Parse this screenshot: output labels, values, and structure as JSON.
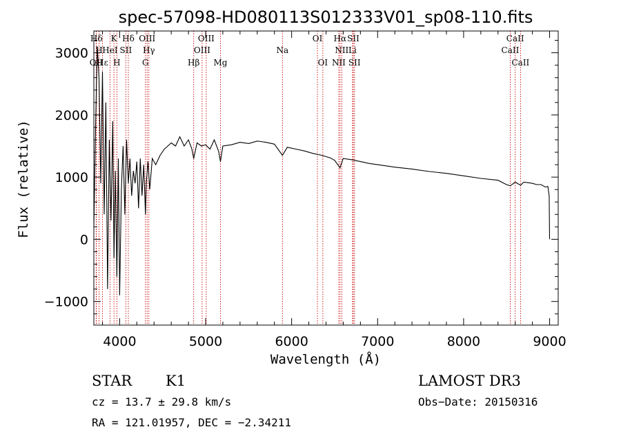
{
  "chart_data": {
    "type": "line",
    "title": "spec-57098-HD080113S012333V01_sp08-110.fits",
    "xlabel": "Wavelength (Å)",
    "ylabel": "Flux (relative)",
    "xlim": [
      3700,
      9100
    ],
    "ylim": [
      -1380,
      3350
    ],
    "x_ticks": [
      4000,
      5000,
      6000,
      7000,
      8000,
      9000
    ],
    "x_tick_labels": [
      "4000",
      "5000",
      "6000",
      "7000",
      "8000",
      "9000"
    ],
    "y_ticks": [
      -1000,
      0,
      1000,
      2000,
      3000
    ],
    "y_tick_labels": [
      "−1000",
      "0",
      "1000",
      "2000",
      "3000"
    ],
    "grid": false,
    "line_color": "#000000",
    "marker_color": "#cc0000",
    "series": [
      {
        "name": "flux",
        "x": [
          3700,
          3720,
          3740,
          3760,
          3780,
          3800,
          3820,
          3840,
          3860,
          3880,
          3900,
          3920,
          3934,
          3950,
          3968,
          3985,
          4000,
          4020,
          4040,
          4060,
          4080,
          4101,
          4120,
          4140,
          4160,
          4180,
          4200,
          4220,
          4240,
          4260,
          4280,
          4300,
          4310,
          4330,
          4350,
          4380,
          4420,
          4470,
          4520,
          4560,
          4600,
          4650,
          4700,
          4750,
          4800,
          4840,
          4861,
          4900,
          4950,
          5000,
          5050,
          5100,
          5150,
          5172,
          5200,
          5300,
          5400,
          5500,
          5600,
          5700,
          5800,
          5893,
          5950,
          6050,
          6150,
          6250,
          6350,
          6450,
          6500,
          6563,
          6600,
          6700,
          6800,
          6900,
          7000,
          7200,
          7400,
          7600,
          7800,
          8000,
          8200,
          8400,
          8498,
          8542,
          8600,
          8662,
          8700,
          8800,
          8850,
          8900,
          8950,
          8980,
          8995,
          9000
        ],
        "y": [
          200,
          1800,
          3100,
          2600,
          900,
          2700,
          400,
          2200,
          -800,
          1600,
          300,
          1900,
          -300,
          1100,
          -600,
          1300,
          -900,
          800,
          1500,
          400,
          1600,
          900,
          1300,
          700,
          1100,
          900,
          1250,
          500,
          1300,
          700,
          1200,
          400,
          900,
          1250,
          800,
          1300,
          1200,
          1350,
          1450,
          1500,
          1550,
          1500,
          1650,
          1500,
          1600,
          1450,
          1300,
          1550,
          1500,
          1520,
          1450,
          1600,
          1420,
          1250,
          1500,
          1520,
          1560,
          1540,
          1580,
          1560,
          1530,
          1350,
          1480,
          1450,
          1420,
          1380,
          1350,
          1310,
          1270,
          1150,
          1300,
          1280,
          1250,
          1220,
          1200,
          1160,
          1130,
          1090,
          1060,
          1020,
          980,
          950,
          880,
          860,
          920,
          870,
          920,
          900,
          880,
          880,
          840,
          850,
          700,
          0
        ]
      }
    ],
    "spectral_lines": [
      {
        "name": "Hδ",
        "wavelength": 3730,
        "row": 1
      },
      {
        "name": "K",
        "wavelength": 3934,
        "row": 1
      },
      {
        "name": "Hδ",
        "wavelength": 4101,
        "row": 1
      },
      {
        "name": "OIII",
        "wavelength": 4320,
        "row": 1
      },
      {
        "name": "OIII",
        "wavelength": 5007,
        "row": 1
      },
      {
        "name": "OI",
        "wavelength": 6300,
        "row": 1
      },
      {
        "name": "Hα",
        "wavelength": 6563,
        "row": 1
      },
      {
        "name": "SII",
        "wavelength": 6717,
        "row": 1
      },
      {
        "name": "CaII",
        "wavelength": 8600,
        "row": 1
      },
      {
        "name": "H",
        "wavelength": 3760,
        "row": 2
      },
      {
        "name": "HeI",
        "wavelength": 3888,
        "row": 2
      },
      {
        "name": "SII",
        "wavelength": 4072,
        "row": 2
      },
      {
        "name": "Hγ",
        "wavelength": 4340,
        "row": 2
      },
      {
        "name": "OIII",
        "wavelength": 4959,
        "row": 2
      },
      {
        "name": "Na",
        "wavelength": 5893,
        "row": 2
      },
      {
        "name": "NII",
        "wavelength": 6583,
        "row": 2
      },
      {
        "name": "Li",
        "wavelength": 6708,
        "row": 2
      },
      {
        "name": "CaII",
        "wavelength": 8542,
        "row": 2
      },
      {
        "name": "OII",
        "wavelength": 3727,
        "row": 3
      },
      {
        "name": "Hε",
        "wavelength": 3800,
        "row": 3
      },
      {
        "name": "H",
        "wavelength": 3968,
        "row": 3
      },
      {
        "name": "G",
        "wavelength": 4300,
        "row": 3
      },
      {
        "name": "Hβ",
        "wavelength": 4861,
        "row": 3
      },
      {
        "name": "Mg",
        "wavelength": 5172,
        "row": 3
      },
      {
        "name": "OI",
        "wavelength": 6363,
        "row": 3
      },
      {
        "name": "NII",
        "wavelength": 6548,
        "row": 3
      },
      {
        "name": "SII",
        "wavelength": 6731,
        "row": 3
      },
      {
        "name": "CaII",
        "wavelength": 8662,
        "row": 3
      }
    ]
  },
  "info": {
    "object_class": "STAR",
    "subclass": "K1",
    "redshift": "cz = 13.7 ± 29.8 km/s",
    "coords": "RA = 121.01957, DEC =  −2.34211",
    "survey": "LAMOST DR3",
    "obs_date": "Obs−Date: 20150316"
  }
}
